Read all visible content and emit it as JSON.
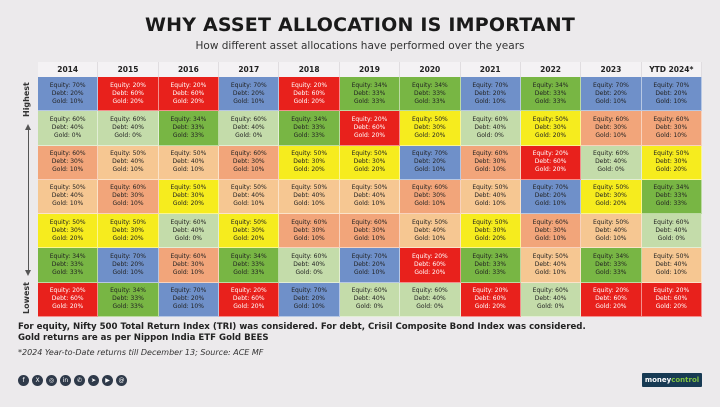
{
  "title": "WHY ASSET ALLOCATION IS IMPORTANT",
  "subtitle": "How different asset allocations have performed over the years",
  "axis": {
    "top_label": "Highest",
    "bottom_label": "Lowest"
  },
  "palette": {
    "blue": "#6f90c9",
    "red": "#e8211c",
    "green": "#78b644",
    "lightgreen": "#c4dcaa",
    "orange": "#f2a57a",
    "yellow": "#f6ec1e",
    "peach": "#f6c792"
  },
  "chart_data": {
    "type": "table",
    "columns": [
      "2014",
      "2015",
      "2016",
      "2017",
      "2018",
      "2019",
      "2020",
      "2021",
      "2022",
      "2023",
      "YTD 2024*"
    ],
    "rank_order": "Highest to Lowest",
    "rows": [
      [
        {
          "equity": "70%",
          "debt": "20%",
          "gold": "10%",
          "color": "blue"
        },
        {
          "equity": "20%",
          "debt": "60%",
          "gold": "20%",
          "color": "red"
        },
        {
          "equity": "20%",
          "debt": "60%",
          "gold": "20%",
          "color": "red"
        },
        {
          "equity": "70%",
          "debt": "20%",
          "gold": "10%",
          "color": "blue"
        },
        {
          "equity": "20%",
          "debt": "60%",
          "gold": "20%",
          "color": "red"
        },
        {
          "equity": "34%",
          "debt": "33%",
          "gold": "33%",
          "color": "green"
        },
        {
          "equity": "34%",
          "debt": "33%",
          "gold": "33%",
          "color": "green"
        },
        {
          "equity": "70%",
          "debt": "20%",
          "gold": "10%",
          "color": "blue"
        },
        {
          "equity": "34%",
          "debt": "33%",
          "gold": "33%",
          "color": "green"
        },
        {
          "equity": "70%",
          "debt": "20%",
          "gold": "10%",
          "color": "blue"
        },
        {
          "equity": "70%",
          "debt": "20%",
          "gold": "10%",
          "color": "blue"
        }
      ],
      [
        {
          "equity": "60%",
          "debt": "40%",
          "gold": "0%",
          "color": "lightgreen"
        },
        {
          "equity": "60%",
          "debt": "40%",
          "gold": "0%",
          "color": "lightgreen"
        },
        {
          "equity": "34%",
          "debt": "33%",
          "gold": "33%",
          "color": "green"
        },
        {
          "equity": "60%",
          "debt": "40%",
          "gold": "0%",
          "color": "lightgreen"
        },
        {
          "equity": "34%",
          "debt": "33%",
          "gold": "33%",
          "color": "green"
        },
        {
          "equity": "20%",
          "debt": "60%",
          "gold": "20%",
          "color": "red"
        },
        {
          "equity": "50%",
          "debt": "30%",
          "gold": "20%",
          "color": "yellow"
        },
        {
          "equity": "60%",
          "debt": "40%",
          "gold": "0%",
          "color": "lightgreen"
        },
        {
          "equity": "50%",
          "debt": "30%",
          "gold": "20%",
          "color": "yellow"
        },
        {
          "equity": "60%",
          "debt": "30%",
          "gold": "10%",
          "color": "orange"
        },
        {
          "equity": "60%",
          "debt": "30%",
          "gold": "10%",
          "color": "orange"
        }
      ],
      [
        {
          "equity": "60%",
          "debt": "30%",
          "gold": "10%",
          "color": "orange"
        },
        {
          "equity": "50%",
          "debt": "40%",
          "gold": "10%",
          "color": "peach"
        },
        {
          "equity": "50%",
          "debt": "40%",
          "gold": "10%",
          "color": "peach"
        },
        {
          "equity": "60%",
          "debt": "30%",
          "gold": "10%",
          "color": "orange"
        },
        {
          "equity": "50%",
          "debt": "30%",
          "gold": "20%",
          "color": "yellow"
        },
        {
          "equity": "50%",
          "debt": "30%",
          "gold": "20%",
          "color": "yellow"
        },
        {
          "equity": "70%",
          "debt": "20%",
          "gold": "10%",
          "color": "blue"
        },
        {
          "equity": "60%",
          "debt": "30%",
          "gold": "10%",
          "color": "orange"
        },
        {
          "equity": "20%",
          "debt": "60%",
          "gold": "20%",
          "color": "red"
        },
        {
          "equity": "60%",
          "debt": "40%",
          "gold": "0%",
          "color": "lightgreen"
        },
        {
          "equity": "50%",
          "debt": "30%",
          "gold": "20%",
          "color": "yellow"
        }
      ],
      [
        {
          "equity": "50%",
          "debt": "40%",
          "gold": "10%",
          "color": "peach"
        },
        {
          "equity": "60%",
          "debt": "30%",
          "gold": "10%",
          "color": "orange"
        },
        {
          "equity": "50%",
          "debt": "30%",
          "gold": "20%",
          "color": "yellow"
        },
        {
          "equity": "50%",
          "debt": "40%",
          "gold": "10%",
          "color": "peach"
        },
        {
          "equity": "50%",
          "debt": "40%",
          "gold": "10%",
          "color": "peach"
        },
        {
          "equity": "50%",
          "debt": "40%",
          "gold": "10%",
          "color": "peach"
        },
        {
          "equity": "60%",
          "debt": "30%",
          "gold": "10%",
          "color": "orange"
        },
        {
          "equity": "50%",
          "debt": "40%",
          "gold": "10%",
          "color": "peach"
        },
        {
          "equity": "70%",
          "debt": "20%",
          "gold": "10%",
          "color": "blue"
        },
        {
          "equity": "50%",
          "debt": "30%",
          "gold": "20%",
          "color": "yellow"
        },
        {
          "equity": "34%",
          "debt": "33%",
          "gold": "33%",
          "color": "green"
        }
      ],
      [
        {
          "equity": "50%",
          "debt": "30%",
          "gold": "20%",
          "color": "yellow"
        },
        {
          "equity": "50%",
          "debt": "30%",
          "gold": "20%",
          "color": "yellow"
        },
        {
          "equity": "60%",
          "debt": "40%",
          "gold": "0%",
          "color": "lightgreen"
        },
        {
          "equity": "50%",
          "debt": "30%",
          "gold": "20%",
          "color": "yellow"
        },
        {
          "equity": "60%",
          "debt": "30%",
          "gold": "10%",
          "color": "orange"
        },
        {
          "equity": "60%",
          "debt": "30%",
          "gold": "10%",
          "color": "orange"
        },
        {
          "equity": "50%",
          "debt": "40%",
          "gold": "10%",
          "color": "peach"
        },
        {
          "equity": "50%",
          "debt": "30%",
          "gold": "20%",
          "color": "yellow"
        },
        {
          "equity": "60%",
          "debt": "30%",
          "gold": "10%",
          "color": "orange"
        },
        {
          "equity": "50%",
          "debt": "40%",
          "gold": "10%",
          "color": "peach"
        },
        {
          "equity": "60%",
          "debt": "40%",
          "gold": "0%",
          "color": "lightgreen"
        }
      ],
      [
        {
          "equity": "34%",
          "debt": "33%",
          "gold": "33%",
          "color": "green"
        },
        {
          "equity": "70%",
          "debt": "20%",
          "gold": "10%",
          "color": "blue"
        },
        {
          "equity": "60%",
          "debt": "30%",
          "gold": "10%",
          "color": "orange"
        },
        {
          "equity": "34%",
          "debt": "33%",
          "gold": "33%",
          "color": "green"
        },
        {
          "equity": "60%",
          "debt": "40%",
          "gold": "0%",
          "color": "lightgreen"
        },
        {
          "equity": "70%",
          "debt": "20%",
          "gold": "10%",
          "color": "blue"
        },
        {
          "equity": "20%",
          "debt": "60%",
          "gold": "20%",
          "color": "red"
        },
        {
          "equity": "34%",
          "debt": "33%",
          "gold": "33%",
          "color": "green"
        },
        {
          "equity": "50%",
          "debt": "40%",
          "gold": "10%",
          "color": "peach"
        },
        {
          "equity": "34%",
          "debt": "33%",
          "gold": "33%",
          "color": "green"
        },
        {
          "equity": "50%",
          "debt": "40%",
          "gold": "10%",
          "color": "peach"
        }
      ],
      [
        {
          "equity": "20%",
          "debt": "60%",
          "gold": "20%",
          "color": "red"
        },
        {
          "equity": "34%",
          "debt": "33%",
          "gold": "33%",
          "color": "green"
        },
        {
          "equity": "70%",
          "debt": "20%",
          "gold": "10%",
          "color": "blue"
        },
        {
          "equity": "20%",
          "debt": "60%",
          "gold": "20%",
          "color": "red"
        },
        {
          "equity": "70%",
          "debt": "20%",
          "gold": "10%",
          "color": "blue"
        },
        {
          "equity": "60%",
          "debt": "40%",
          "gold": "0%",
          "color": "lightgreen"
        },
        {
          "equity": "60%",
          "debt": "40%",
          "gold": "0%",
          "color": "lightgreen"
        },
        {
          "equity": "20%",
          "debt": "60%",
          "gold": "20%",
          "color": "red"
        },
        {
          "equity": "60%",
          "debt": "40%",
          "gold": "0%",
          "color": "lightgreen"
        },
        {
          "equity": "20%",
          "debt": "60%",
          "gold": "20%",
          "color": "red"
        },
        {
          "equity": "20%",
          "debt": "60%",
          "gold": "20%",
          "color": "red"
        }
      ]
    ]
  },
  "notes": {
    "line1": "For equity, Nifty 500 Total Return Index (TRI) was considered. For debt, Crisil Composite Bond Index was considered.",
    "line2": "Gold returns are as per Nippon India ETF Gold BEES",
    "source": "*2024 Year-to-Date returns till December 13; Source: ACE MF"
  },
  "labels": {
    "equity": "Equity",
    "debt": "Debt",
    "gold": "Gold"
  },
  "footer": {
    "social_icons": [
      "facebook-icon",
      "x-icon",
      "instagram-icon",
      "linkedin-icon",
      "whatsapp-icon",
      "telegram-icon",
      "youtube-icon",
      "threads-icon"
    ],
    "brand_main": "money",
    "brand_accent": "control"
  }
}
